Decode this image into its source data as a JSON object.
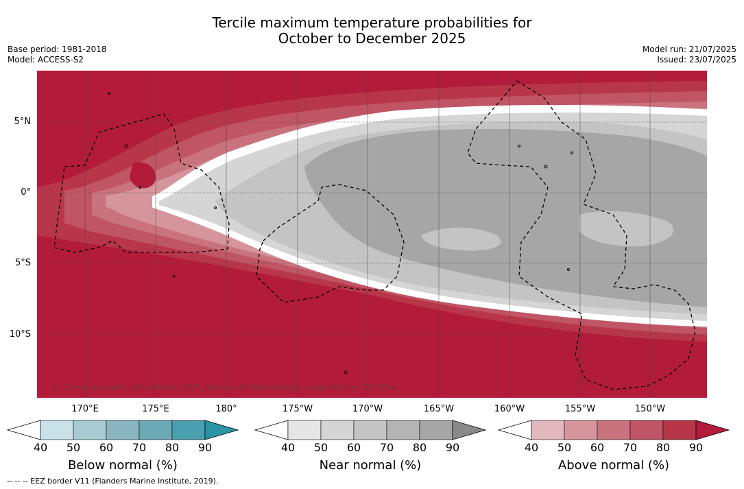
{
  "header": {
    "title_line1": "Tercile maximum temperature probabilities for",
    "title_line2": "October to December 2025",
    "base_period": "Base period: 1981-2018",
    "model": "Model: ACCESS-S2",
    "model_run": "Model run: 21/07/2025",
    "issued": "Issued: 23/07/2025"
  },
  "map": {
    "lat_labels": [
      "5°N",
      "0°",
      "5°S",
      "10°S"
    ],
    "lon_labels": [
      "170°E",
      "175°E",
      "180°",
      "175°W",
      "170°W",
      "165°W",
      "160°W",
      "155°W",
      "150°W"
    ],
    "copyright": "© Commonwealth of Australia 2025, Bureau of Meteorology, supported by COSPPac"
  },
  "colorbars": [
    {
      "name": "below",
      "label": "Below normal (%)",
      "ticks": [
        "40",
        "50",
        "60",
        "70",
        "80",
        "90"
      ],
      "colors": [
        "#ffffff",
        "#c9e2e8",
        "#a8cbd2",
        "#89b6c0",
        "#6aa9b5",
        "#4a9fae",
        "#2a93a6"
      ]
    },
    {
      "name": "near",
      "label": "Near normal (%)",
      "ticks": [
        "40",
        "50",
        "60",
        "70",
        "80",
        "90"
      ],
      "colors": [
        "#ffffff",
        "#e6e6e6",
        "#d5d5d5",
        "#c4c4c4",
        "#b4b4b4",
        "#a6a6a6",
        "#8a8a8a"
      ]
    },
    {
      "name": "above",
      "label": "Above normal (%)",
      "ticks": [
        "40",
        "50",
        "60",
        "70",
        "80",
        "90"
      ],
      "colors": [
        "#ffffff",
        "#e2b8be",
        "#d6959d",
        "#c9737e",
        "#c05565",
        "#b8364a",
        "#b21c3a"
      ]
    }
  ],
  "footer": "--  --  -- EEZ border V11 (Flanders Marine Institute, 2019)."
}
